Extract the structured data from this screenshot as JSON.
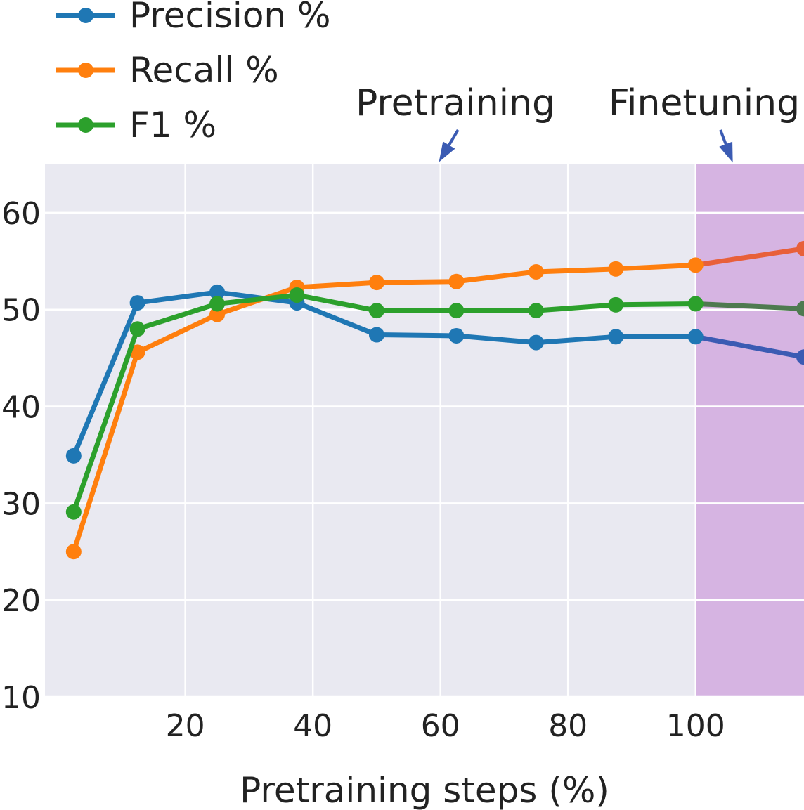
{
  "chart_data": {
    "type": "line",
    "xlabel": "Pretraining steps (%)",
    "ylabel": "",
    "xlim": [
      -2,
      117
    ],
    "ylim": [
      10,
      65
    ],
    "xticks": [
      20,
      40,
      60,
      80,
      100
    ],
    "yticks": [
      10,
      20,
      30,
      40,
      50,
      60
    ],
    "grid": true,
    "legend_position": "top-left",
    "x": [
      2.5,
      12.5,
      25,
      37.5,
      50,
      62.5,
      75,
      87.5,
      100,
      117
    ],
    "series": [
      {
        "name": "Precision %",
        "color": "#1f77b4",
        "finetune_color": "#3b5bb3",
        "values": [
          34.9,
          50.7,
          51.8,
          50.7,
          47.4,
          47.3,
          46.6,
          47.2,
          47.2,
          45.1
        ]
      },
      {
        "name": "Recall %",
        "color": "#ff7f0e",
        "finetune_color": "#e8603a",
        "values": [
          25.0,
          45.6,
          49.5,
          52.3,
          52.8,
          52.9,
          53.9,
          54.2,
          54.6,
          56.3
        ]
      },
      {
        "name": "F1 %",
        "color": "#2ca02c",
        "finetune_color": "#4e7a50",
        "values": [
          29.1,
          48.0,
          50.6,
          51.5,
          49.9,
          49.9,
          49.9,
          50.5,
          50.6,
          50.1
        ]
      }
    ],
    "shaded_region": {
      "x_start": 100,
      "x_end": 117,
      "color": "#d6b4e2"
    },
    "annotations": [
      {
        "text": "Pretraining",
        "arrow_to_x": 60
      },
      {
        "text": "Finetuning",
        "arrow_to_x": 105
      }
    ]
  }
}
